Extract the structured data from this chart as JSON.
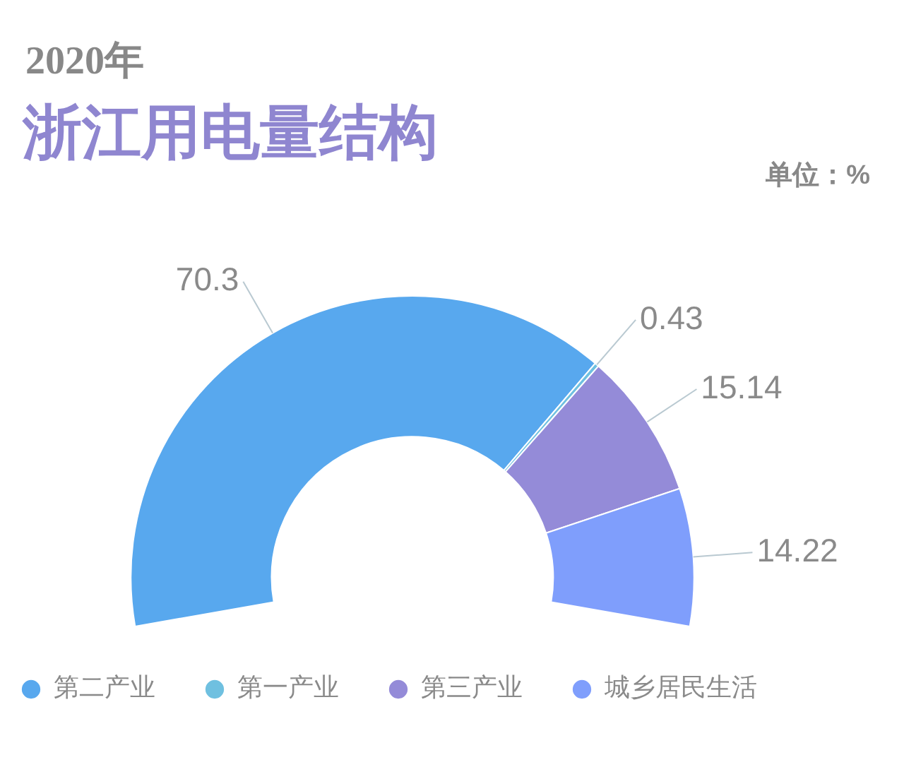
{
  "chart_data": {
    "type": "donut",
    "subtitle": "2020年",
    "title": "浙江用电量结构",
    "annotations": [
      "单位：%"
    ],
    "categories": [
      "第二产业",
      "第一产业",
      "第三产业",
      "城乡居民生活"
    ],
    "values": [
      70.3,
      0.43,
      15.14,
      14.22
    ],
    "colors": [
      "#58a8ee",
      "#6fc0e0",
      "#948bd8",
      "#7f9efc"
    ],
    "data_labels": true,
    "legend": "bottom"
  }
}
